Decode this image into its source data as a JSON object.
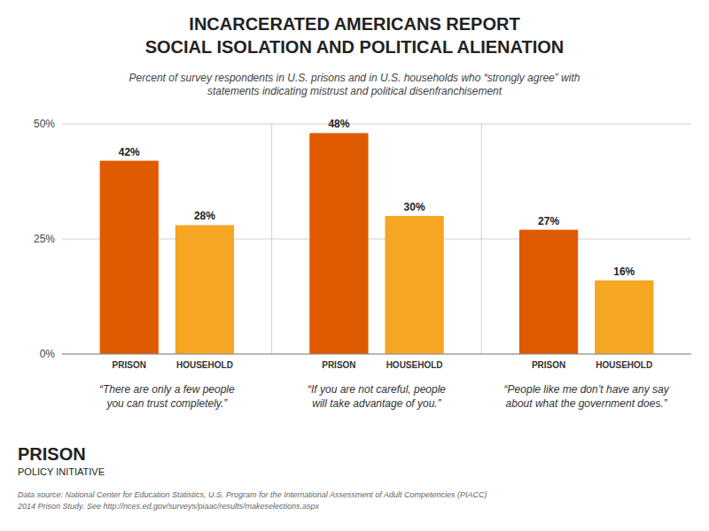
{
  "chart_data": {
    "type": "bar",
    "title": "INCARCERATED AMERICANS REPORT\nSOCIAL ISOLATION AND POLITICAL ALIENATION",
    "subtitle": "Percent of survey respondents in U.S. prisons and in U.S. households who “strongly agree” with\nstatements indicating mistrust and political disenfranchisement",
    "categories": [
      "“There are only a few people\nyou can trust completely.”",
      "“If you are not careful, people\nwill take advantage of you.”",
      "“People like me don’t have any say\nabout what the government does.”"
    ],
    "series": [
      {
        "name": "PRISON",
        "color": "#e05a00",
        "values": [
          42,
          48,
          27
        ],
        "value_labels": [
          "42%",
          "48%",
          "27%"
        ]
      },
      {
        "name": "HOUSEHOLD",
        "color": "#f5a623",
        "values": [
          28,
          30,
          16
        ],
        "value_labels": [
          "28%",
          "30%",
          "16%"
        ]
      }
    ],
    "ylim": [
      0,
      50
    ],
    "yticks": [
      {
        "value": 0,
        "label": "0%"
      },
      {
        "value": 25,
        "label": "25%"
      },
      {
        "value": 50,
        "label": "50%"
      }
    ],
    "grid": true,
    "data_labels": true,
    "annotations": [
      "PRISON",
      "POLICY INITIATIVE",
      "Data source: National Center for Education Statistics, U.S. Program for the International Assessment of Adult Competencies (PIACC)\n2014 Prison Study. See http://nces.ed.gov/surveys/piaac/results/makeselections.aspx"
    ]
  }
}
